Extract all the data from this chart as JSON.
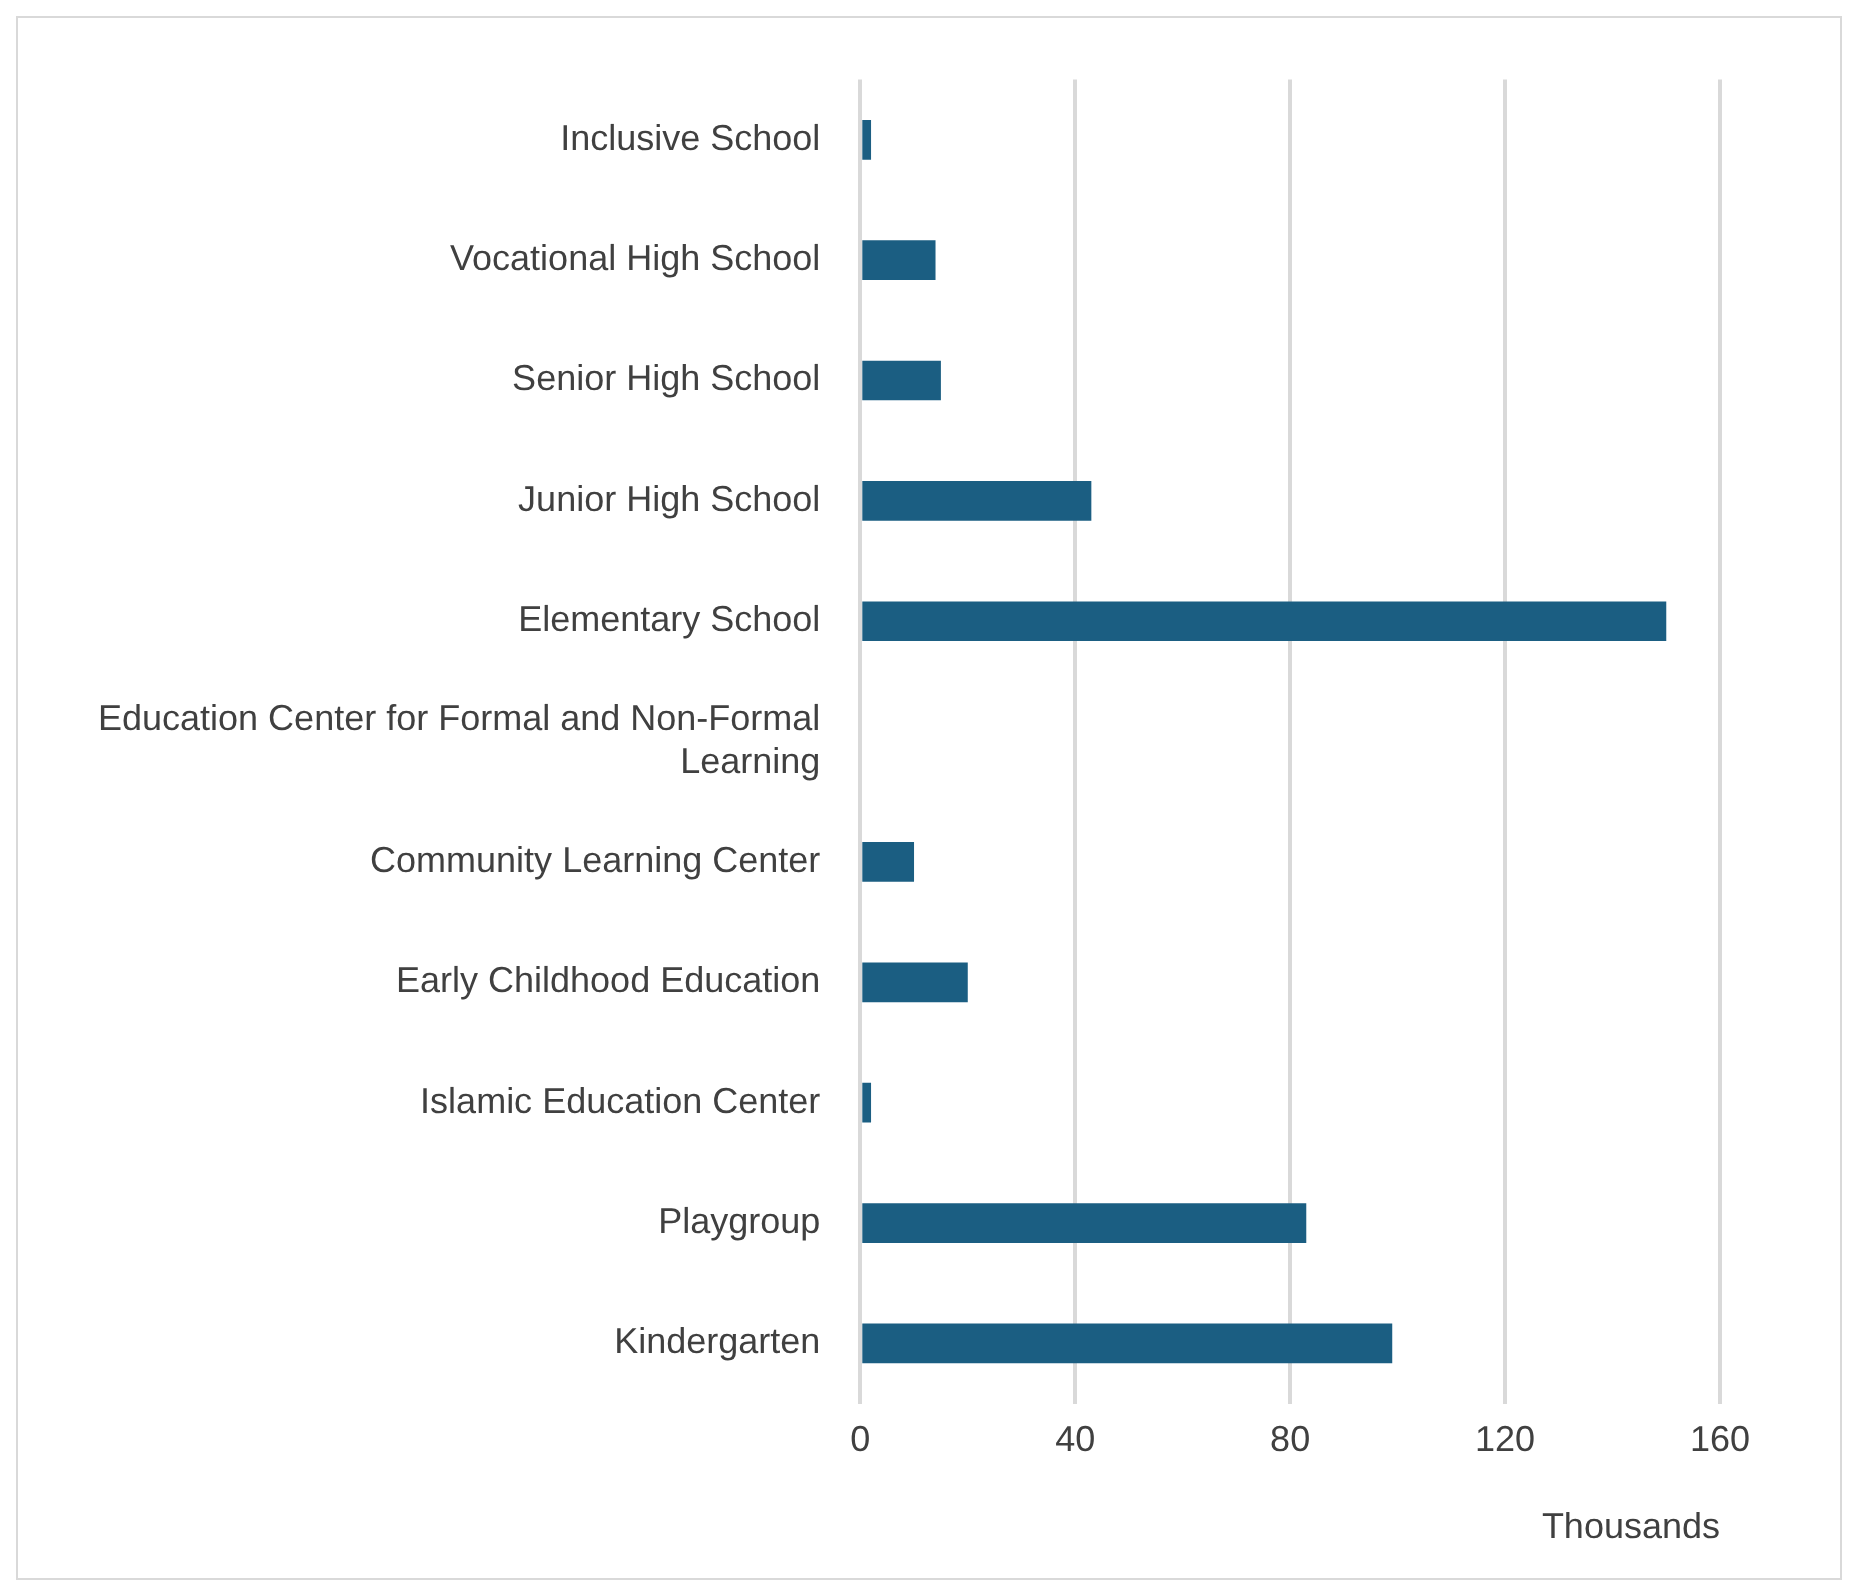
{
  "chart_data": {
    "type": "bar",
    "orientation": "horizontal",
    "categories": [
      "Inclusive School",
      "Vocational High School",
      "Senior High School",
      "Junior High School",
      "Elementary School",
      "Education Center for Formal and Non-Formal Learning",
      "Community Learning Center",
      "Early Childhood Education",
      "Islamic Education Center",
      "Playgroup",
      "Kindergarten"
    ],
    "values": [
      2,
      14,
      15,
      43,
      150,
      0,
      10,
      20,
      2,
      83,
      99
    ],
    "color": "#1b5e82",
    "xlabel": "Thousands",
    "xlim": [
      0,
      160
    ],
    "xticks": [
      0,
      40,
      80,
      120,
      160
    ],
    "grid": "x",
    "legend": false
  }
}
